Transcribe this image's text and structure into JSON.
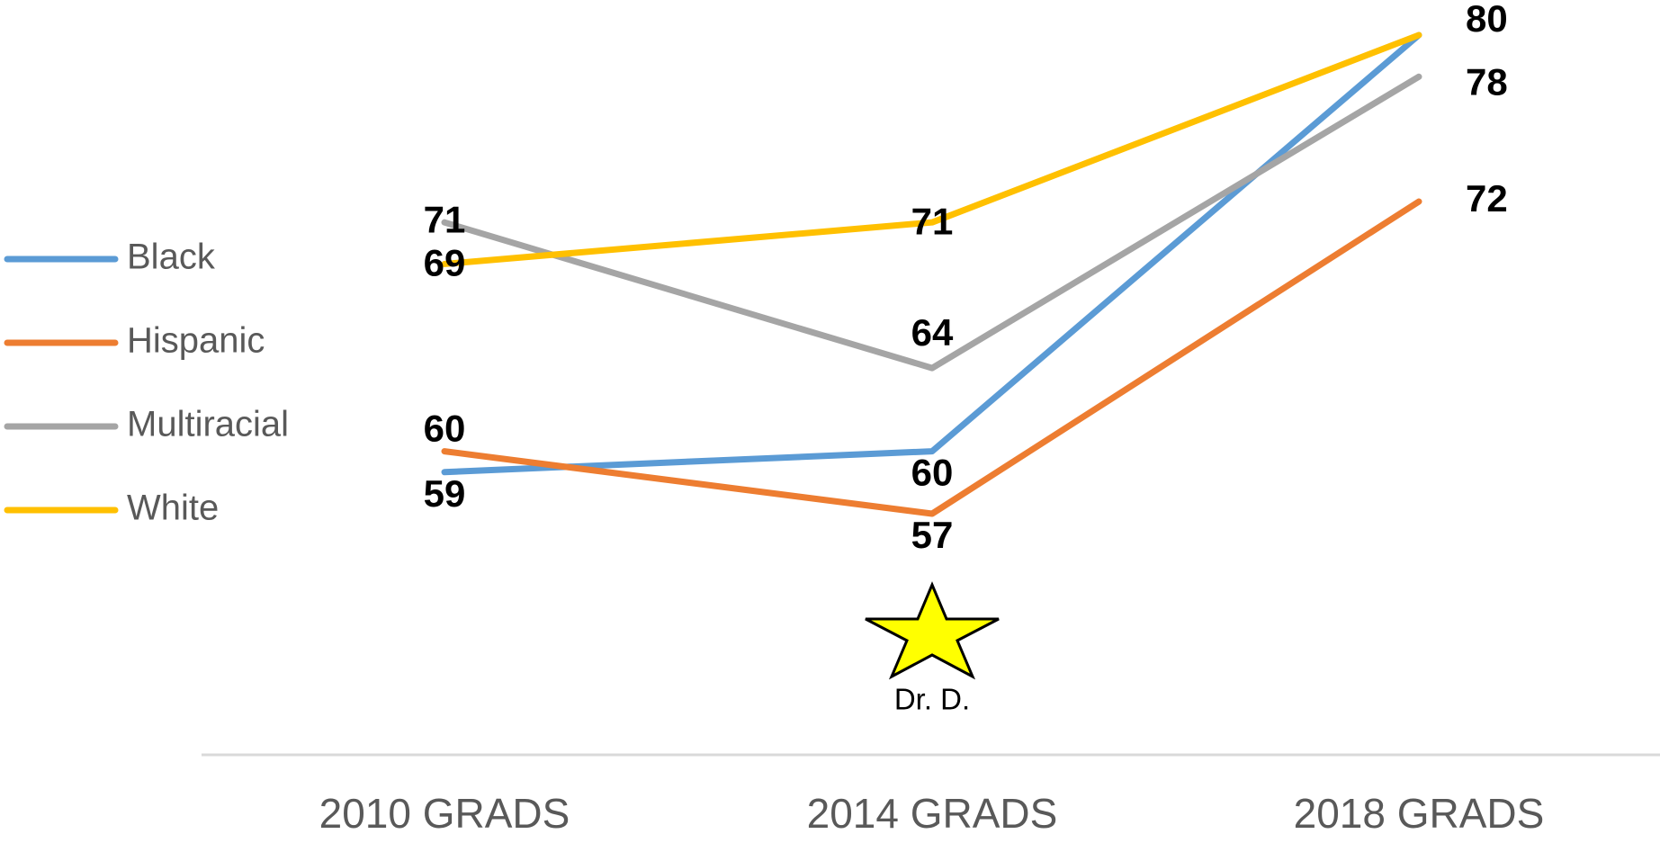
{
  "chart_data": {
    "type": "line",
    "categories": [
      "2010 GRADS",
      "2014 GRADS",
      "2018 GRADS"
    ],
    "series": [
      {
        "name": "Black",
        "color": "#5b9bd5",
        "values": [
          59,
          60,
          80
        ]
      },
      {
        "name": "Hispanic",
        "color": "#ed7d31",
        "values": [
          60,
          57,
          72
        ]
      },
      {
        "name": "Multiracial",
        "color": "#a5a5a5",
        "values": [
          71,
          64,
          78
        ]
      },
      {
        "name": "White",
        "color": "#ffc000",
        "values": [
          69,
          71,
          80
        ],
        "value_labels": [
          "69",
          "71",
          null
        ]
      }
    ],
    "annotation": "Dr. D.",
    "legend": "left"
  }
}
